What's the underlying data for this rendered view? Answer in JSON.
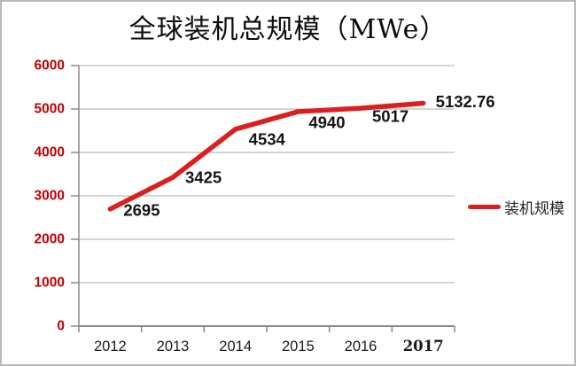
{
  "page": {
    "background": "#ffffff",
    "border_color": "#b9b9b9"
  },
  "chart_data": {
    "type": "line",
    "title": "全球装机总规模（MWe）",
    "categories": [
      "2012",
      "2013",
      "2014",
      "2015",
      "2016",
      "2017"
    ],
    "series": [
      {
        "name": "装机规模",
        "color": "#d92020",
        "values": [
          2695,
          3425,
          4534,
          4940,
          5017,
          5132.76
        ]
      }
    ],
    "data_labels": [
      "2695",
      "3425",
      "4534",
      "4940",
      "5017",
      "5132.76"
    ],
    "y_ticks": [
      0,
      1000,
      2000,
      3000,
      4000,
      5000,
      6000
    ],
    "ylim": [
      0,
      6000
    ],
    "xlabel": "",
    "ylabel": "",
    "grid": "horizontal",
    "legend_position": "right-middle",
    "colors": {
      "line": "#d92020",
      "y_labels": "#c00000",
      "x_labels": "#1a1a1a",
      "data_labels": "#151515",
      "gridline": "#ababab",
      "axis": "#8a8a8a",
      "title": "#0d0d0d"
    }
  }
}
